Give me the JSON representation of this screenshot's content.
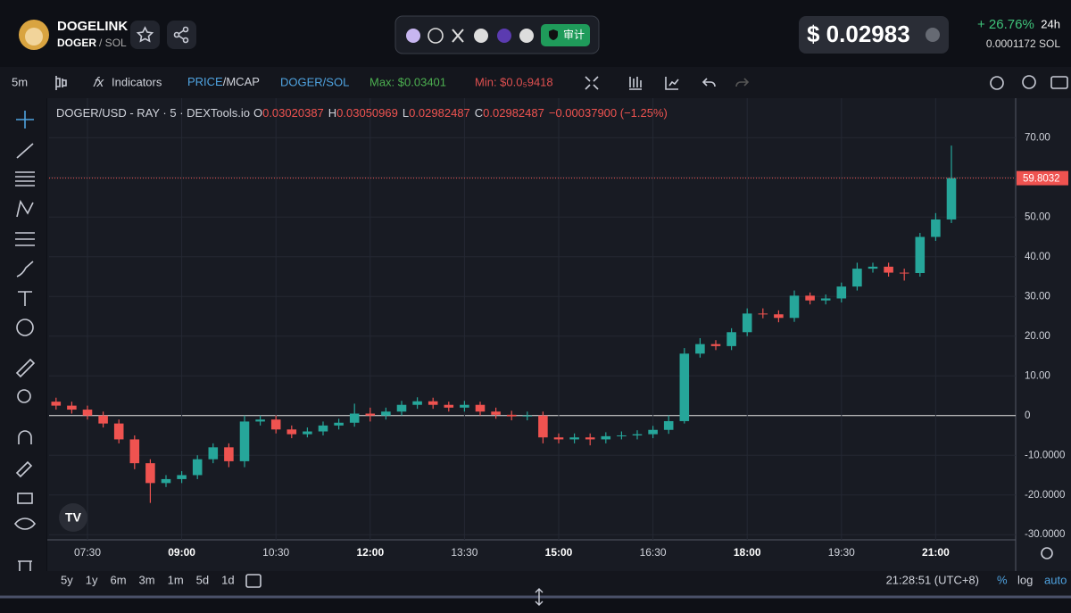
{
  "header": {
    "name": "DOGELINK",
    "symbol": "DOGER",
    "pair": "/ SOL",
    "audit": "审计",
    "price": "$ 0.02983",
    "change": "+ 26.76%",
    "period": "24h",
    "price_sol": "0.0001172 SOL"
  },
  "toolbar": {
    "interval": "5m",
    "indicators": "Indicators",
    "price": "PRICE",
    "mcap": "/MCAP",
    "pair": "DOGER/SOL",
    "max": "Max: $0.03401",
    "min": "Min: $0.0₅9418"
  },
  "legend": {
    "title": "DOGER/USD - RAY · 5 · DEXTools.io",
    "o": "O",
    "o_value": "0.03020387",
    "h": "H",
    "h_value": "0.03050969",
    "l": "L",
    "l_value": "0.02982487",
    "c": "C",
    "c_value": "0.02982487",
    "change": "−0.00037900 (−1.25%)"
  },
  "chart_data": {
    "type": "candlestick",
    "categories": [
      "07:00",
      "07:15",
      "07:30",
      "07:45",
      "08:00",
      "08:15",
      "08:30",
      "08:45",
      "09:00",
      "09:15",
      "09:30",
      "09:45",
      "10:00",
      "10:15",
      "10:30",
      "10:45",
      "11:00",
      "11:15",
      "11:30",
      "11:45",
      "12:00",
      "12:15",
      "12:30",
      "12:45",
      "13:00",
      "13:15",
      "13:30",
      "13:45",
      "14:00",
      "14:15",
      "14:30",
      "14:45",
      "15:00",
      "15:15",
      "15:30",
      "15:45",
      "16:00",
      "16:15",
      "16:30",
      "16:45",
      "17:00",
      "17:15",
      "17:30",
      "17:45",
      "18:00",
      "18:15",
      "18:30",
      "18:45",
      "19:00",
      "19:15",
      "19:30",
      "19:45",
      "20:00",
      "20:15",
      "20:30",
      "20:45",
      "21:00",
      "21:15"
    ],
    "open": [
      3.5,
      2.5,
      1.5,
      0,
      -2,
      -6,
      -12,
      -17,
      -16,
      -15,
      -11,
      -8,
      -11.5,
      -1.5,
      -1,
      -3.5,
      -4.7,
      -4,
      -2.5,
      -1.8,
      0.5,
      0,
      1,
      2.7,
      3.6,
      2.7,
      2,
      2.7,
      1,
      0.2,
      -0.2,
      0,
      -5.5,
      -6,
      -5.5,
      -6,
      -5.2,
      -5,
      -4.7,
      -3.6,
      -1.4,
      15.6,
      18,
      17.5,
      21,
      25.7,
      25.5,
      24.6,
      30.2,
      29,
      29.5,
      32.5,
      37,
      37.5,
      36,
      35.9,
      45,
      49.4
    ],
    "high": [
      4.5,
      3.5,
      2.5,
      1,
      -1,
      -5,
      -11,
      -15,
      -14,
      -10,
      -7,
      -7,
      0,
      0,
      0,
      -2.5,
      -3,
      -1.5,
      -0.8,
      3,
      2,
      2,
      3.7,
      4.6,
      4.5,
      3.5,
      3.7,
      3.5,
      2,
      1.2,
      1,
      1,
      -4.5,
      -4.5,
      -4.5,
      -4.2,
      -4,
      -3.7,
      -2.6,
      0,
      17,
      19.5,
      19,
      22,
      27,
      27,
      26.5,
      31.5,
      31,
      30.5,
      33.5,
      38.5,
      38.5,
      38.5,
      37,
      46,
      51,
      68
    ],
    "low": [
      1.5,
      0.5,
      -1,
      -3,
      -7,
      -13.5,
      -22,
      -18,
      -17,
      -16,
      -12,
      -13,
      -13,
      -2.5,
      -4.5,
      -5.7,
      -5.5,
      -5,
      -3.5,
      -2.8,
      -1.5,
      -1,
      0,
      1.7,
      1.7,
      1,
      1,
      0,
      -0.8,
      -1.2,
      -1.2,
      -7,
      -7,
      -7,
      -7.5,
      -7,
      -6,
      -6,
      -5.7,
      -4.6,
      -2,
      14.6,
      16.5,
      16.5,
      20,
      24.5,
      23.5,
      23.6,
      28,
      28,
      28.5,
      31.5,
      36,
      35,
      34,
      35,
      44,
      48.5
    ],
    "close": [
      2.5,
      1.5,
      0,
      -2,
      -6,
      -12,
      -17,
      -16,
      -15,
      -11,
      -8,
      -11.5,
      -1.5,
      -1,
      -3.5,
      -4.7,
      -4,
      -2.5,
      -1.8,
      0.5,
      0,
      1,
      2.7,
      3.6,
      2.7,
      2,
      2.7,
      1,
      0.2,
      -0.2,
      0,
      -5.5,
      -6,
      -5.5,
      -6,
      -5.2,
      -5,
      -4.7,
      -3.6,
      -1.4,
      15.6,
      18,
      17.5,
      21,
      25.7,
      25.5,
      24.6,
      30.2,
      29,
      29.5,
      32.5,
      37,
      37.5,
      36,
      35.9,
      45,
      49.4,
      59.8
    ],
    "xticks": [
      "07:30",
      "09:00",
      "10:30",
      "12:00",
      "13:30",
      "15:00",
      "16:30",
      "18:00",
      "19:30",
      "21:00"
    ],
    "ylim": [
      -31.3,
      79.5
    ],
    "yticks": [
      {
        "value": 70,
        "label": "70.00"
      },
      {
        "value": 60,
        "label": "60.00"
      },
      {
        "value": 50,
        "label": "50.00"
      },
      {
        "value": 40,
        "label": "40.00"
      },
      {
        "value": 30,
        "label": "30.00"
      },
      {
        "value": 20,
        "label": "20.00"
      },
      {
        "value": 10,
        "label": "10.00"
      },
      0,
      {
        "value": -10,
        "label": "-10.0000"
      },
      {
        "value": -20,
        "label": "-20.0000"
      },
      {
        "value": -30,
        "label": "-30.0000"
      }
    ],
    "price_line": 59.8032,
    "up_color": "#26a69a",
    "down_color": "#ef5350",
    "grid": true
  },
  "footer": {
    "ranges": [
      "5y",
      "1y",
      "6m",
      "3m",
      "1m",
      "5d",
      "1d"
    ],
    "time": "21:28:51 (UTC+8)",
    "percent": "%",
    "log": "log",
    "auto": "auto"
  }
}
